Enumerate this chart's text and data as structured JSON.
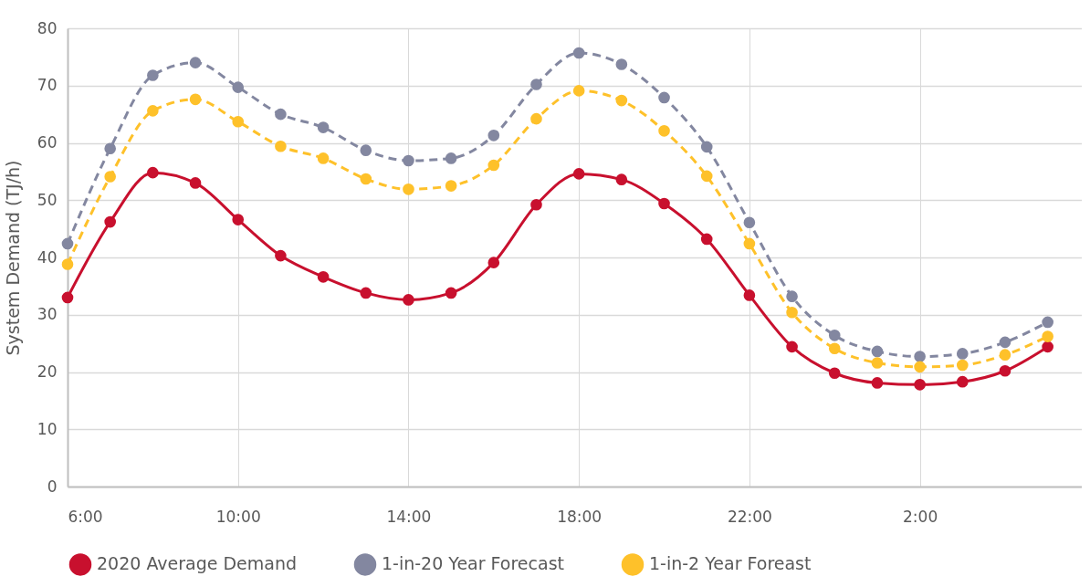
{
  "chart_data": {
    "type": "line",
    "ylabel": "System Demand (TJ/h)",
    "categories": [
      "6:00",
      null,
      null,
      null,
      "10:00",
      null,
      null,
      null,
      "14:00",
      null,
      null,
      null,
      "18:00",
      null,
      null,
      null,
      "22:00",
      null,
      null,
      null,
      "2:00",
      null,
      null,
      null
    ],
    "series": [
      {
        "name": "2020 Average Demand",
        "color": "#c8102e",
        "line_style": "solid",
        "values": [
          33,
          46.2,
          54.8,
          53,
          46.6,
          40.3,
          36.6,
          33.8,
          32.6,
          33.8,
          39.1,
          49.2,
          54.6,
          53.6,
          49.4,
          43.2,
          33.4,
          24.4,
          19.8,
          18.1,
          17.8,
          18.3,
          20.2,
          24.4
        ]
      },
      {
        "name": "1-in-20 Year Forecast",
        "color": "#8387a0",
        "line_style": "dashed",
        "values": [
          42.4,
          59,
          71.8,
          74,
          69.7,
          65,
          62.7,
          58.7,
          56.9,
          57.3,
          61.3,
          70.2,
          75.7,
          73.7,
          67.9,
          59.3,
          46.1,
          33.2,
          26.4,
          23.6,
          22.7,
          23.2,
          25.2,
          28.7
        ]
      },
      {
        "name": "1-in-2 Year Foreast",
        "color": "#fec12a",
        "line_style": "dashed",
        "values": [
          38.8,
          54.1,
          65.6,
          67.6,
          63.7,
          59.4,
          57.3,
          53.7,
          51.9,
          52.5,
          56.1,
          64.2,
          69.1,
          67.4,
          62.1,
          54.2,
          42.4,
          30.4,
          24.1,
          21.6,
          20.9,
          21.2,
          23,
          26.2
        ]
      }
    ],
    "ylim": [
      0,
      80
    ],
    "yticks": [
      0,
      10,
      20,
      30,
      40,
      50,
      60,
      70,
      80
    ],
    "grid": true,
    "legend": "bottom",
    "marker": "circle"
  }
}
